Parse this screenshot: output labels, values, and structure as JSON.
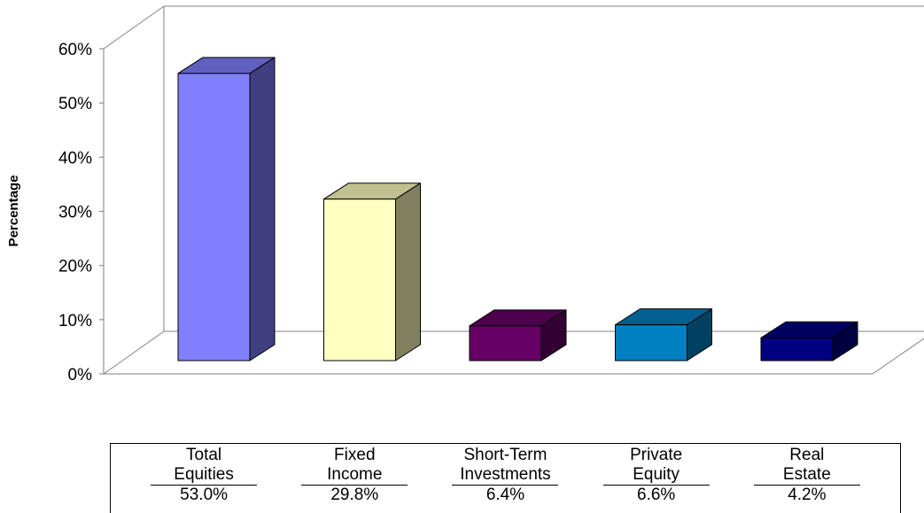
{
  "chart_data": {
    "type": "bar",
    "categories": [
      "Total Equities",
      "Fixed Income",
      "Short-Term Investments",
      "Private Equity",
      "Real Estate"
    ],
    "category_lines": [
      [
        "Total",
        "Equities"
      ],
      [
        "Fixed",
        "Income"
      ],
      [
        "Short-Term",
        "Investments"
      ],
      [
        "Private",
        "Equity"
      ],
      [
        "Real",
        "Estate"
      ]
    ],
    "values": [
      53.0,
      29.8,
      6.4,
      6.6,
      4.2
    ],
    "value_labels": [
      "53.0%",
      "29.8%",
      "6.4%",
      "6.6%",
      "4.2%"
    ],
    "ylabel": "Percentage",
    "ylim": [
      0,
      60
    ],
    "yticks": [
      "0%",
      "10%",
      "20%",
      "30%",
      "40%",
      "50%",
      "60%"
    ],
    "three_d": true,
    "legend": "none",
    "data_table": "bottom",
    "colors": {
      "front": [
        "#8080ff",
        "#ffffc0",
        "#660066",
        "#0080c0",
        "#000080"
      ],
      "top": [
        "#6060c0",
        "#c0c090",
        "#4c004c",
        "#006090",
        "#000060"
      ],
      "side": [
        "#404080",
        "#808060",
        "#330033",
        "#004060",
        "#000040"
      ]
    }
  }
}
